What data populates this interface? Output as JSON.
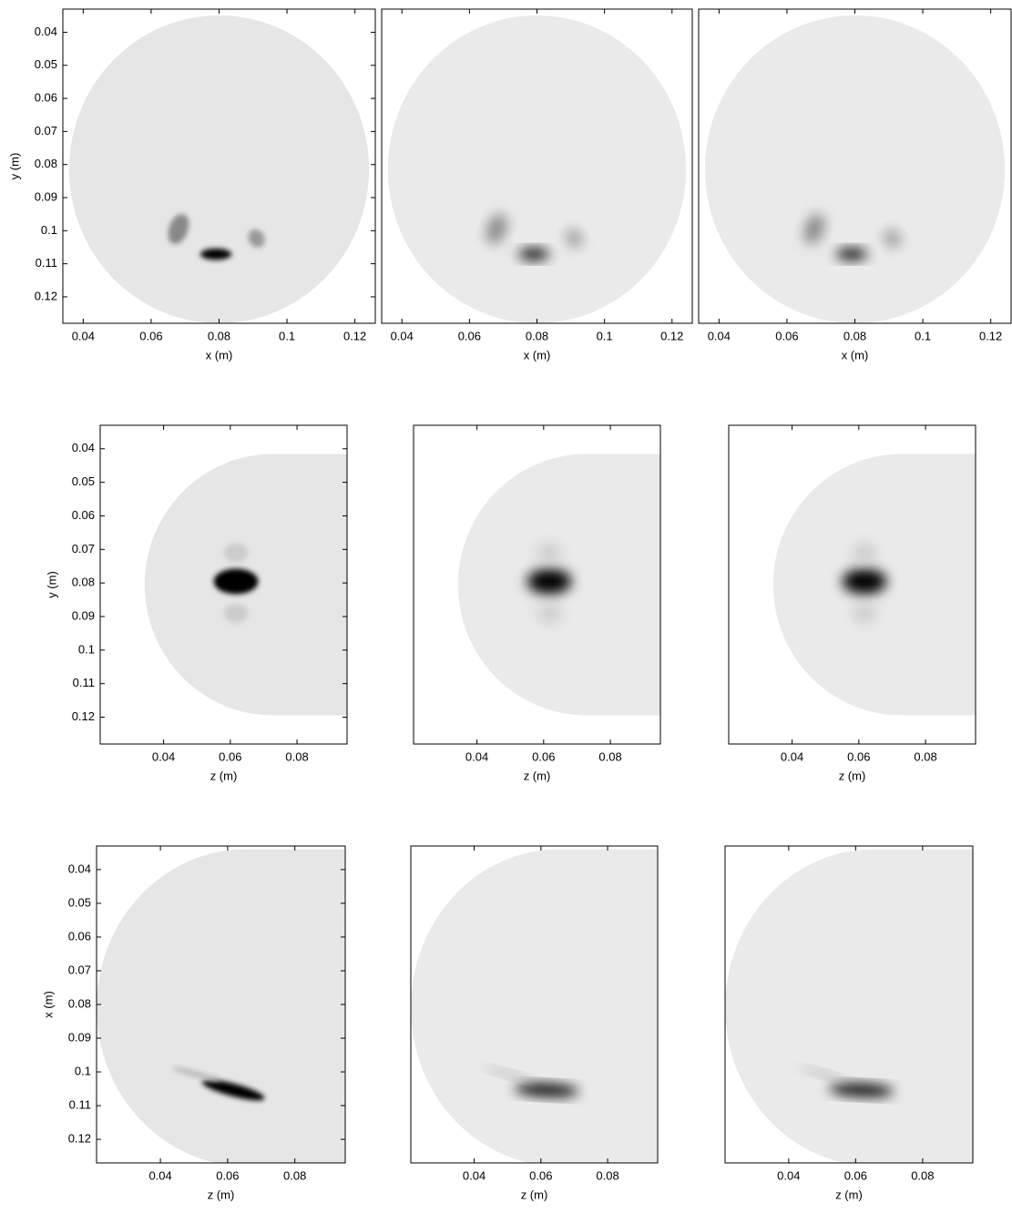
{
  "chart_data": [
    {
      "type": "image",
      "xlabel": "x (m)",
      "ylabel": "y (m)",
      "xlim": [
        0.034,
        0.126
      ],
      "xticks": [
        0.04,
        0.06,
        0.08,
        0.1,
        0.12
      ],
      "ylim": [
        0.033,
        0.128
      ],
      "yticks": [
        0.04,
        0.05,
        0.06,
        0.07,
        0.08,
        0.09,
        0.1,
        0.11,
        0.12
      ]
    },
    {
      "type": "image",
      "xlabel": "x (m)",
      "xlim": [
        0.034,
        0.126
      ],
      "xticks": [
        0.04,
        0.06,
        0.08,
        0.1,
        0.12
      ]
    },
    {
      "type": "image",
      "xlabel": "x (m)",
      "xlim": [
        0.034,
        0.126
      ],
      "xticks": [
        0.04,
        0.06,
        0.08,
        0.1,
        0.12
      ]
    },
    {
      "type": "image",
      "xlabel": "z (m)",
      "ylabel": "y (m)",
      "xlim": [
        0.021,
        0.095
      ],
      "xticks": [
        0.04,
        0.06,
        0.08
      ],
      "ylim": [
        0.033,
        0.128
      ],
      "yticks": [
        0.04,
        0.05,
        0.06,
        0.07,
        0.08,
        0.09,
        0.1,
        0.11,
        0.12
      ]
    },
    {
      "type": "image",
      "xlabel": "z (m)",
      "xlim": [
        0.021,
        0.095
      ],
      "xticks": [
        0.04,
        0.06,
        0.08
      ]
    },
    {
      "type": "image",
      "xlabel": "z (m)",
      "xlim": [
        0.021,
        0.095
      ],
      "xticks": [
        0.04,
        0.06,
        0.08
      ]
    },
    {
      "type": "image",
      "xlabel": "z (m)",
      "ylabel": "x (m)",
      "xlim": [
        0.021,
        0.095
      ],
      "xticks": [
        0.04,
        0.06,
        0.08
      ],
      "ylim": [
        0.033,
        0.127
      ],
      "yticks": [
        0.04,
        0.05,
        0.06,
        0.07,
        0.08,
        0.09,
        0.1,
        0.11,
        0.12
      ]
    },
    {
      "type": "image",
      "xlabel": "z (m)",
      "xlim": [
        0.021,
        0.095
      ],
      "xticks": [
        0.04,
        0.06,
        0.08
      ]
    },
    {
      "type": "image",
      "xlabel": "z (m)",
      "xlim": [
        0.021,
        0.095
      ],
      "xticks": [
        0.04,
        0.06,
        0.08
      ]
    }
  ]
}
